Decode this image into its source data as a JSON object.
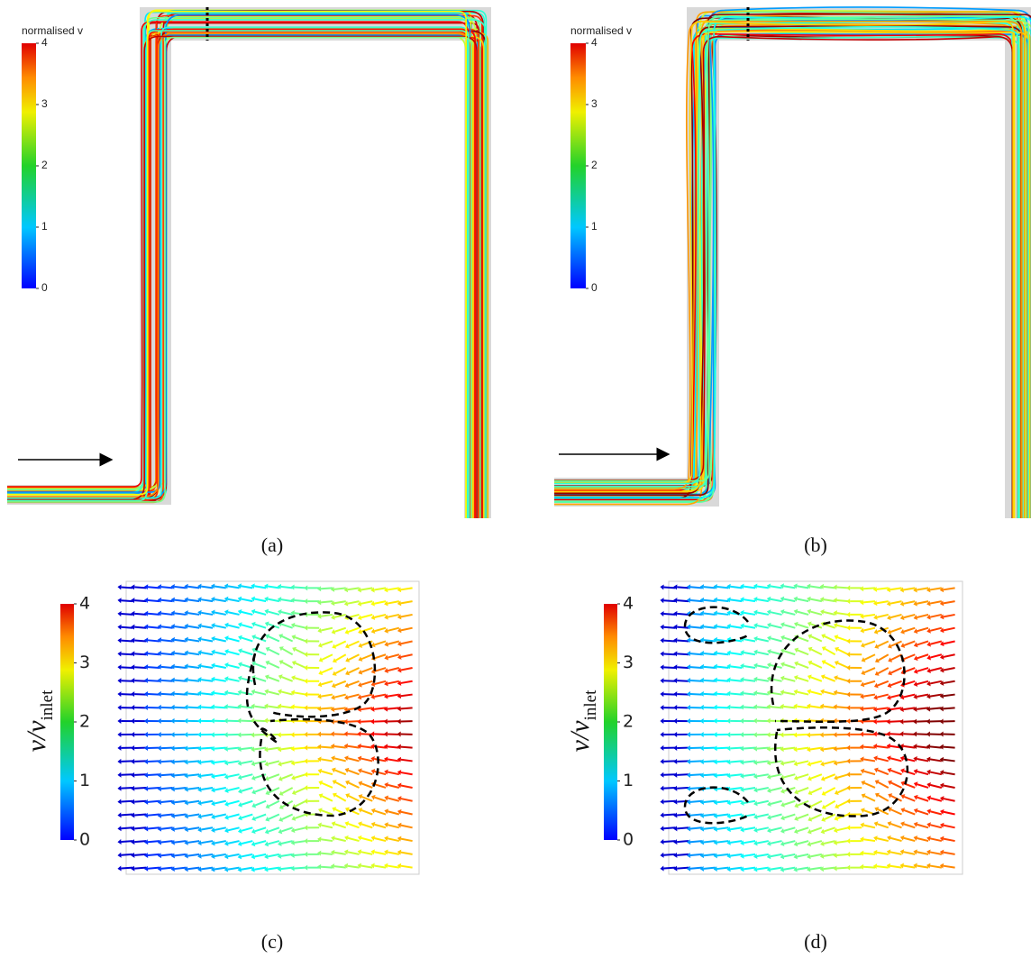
{
  "panels": [
    {
      "label": "(a)",
      "colorbar": {
        "title": "normalised v",
        "ticks": [
          4,
          3,
          2,
          1,
          0
        ]
      }
    },
    {
      "label": "(b)",
      "colorbar": {
        "title": "normalised v",
        "ticks": [
          4,
          3,
          2,
          1,
          0
        ]
      }
    },
    {
      "label": "(c)",
      "colorbar": {
        "title": "v/v",
        "title_subscript": "inlet",
        "ticks": [
          4,
          3,
          2,
          1,
          0
        ]
      }
    },
    {
      "label": "(d)",
      "colorbar": {
        "title": "v/v",
        "title_subscript": "inlet",
        "ticks": [
          4,
          3,
          2,
          1,
          0
        ]
      }
    }
  ]
}
